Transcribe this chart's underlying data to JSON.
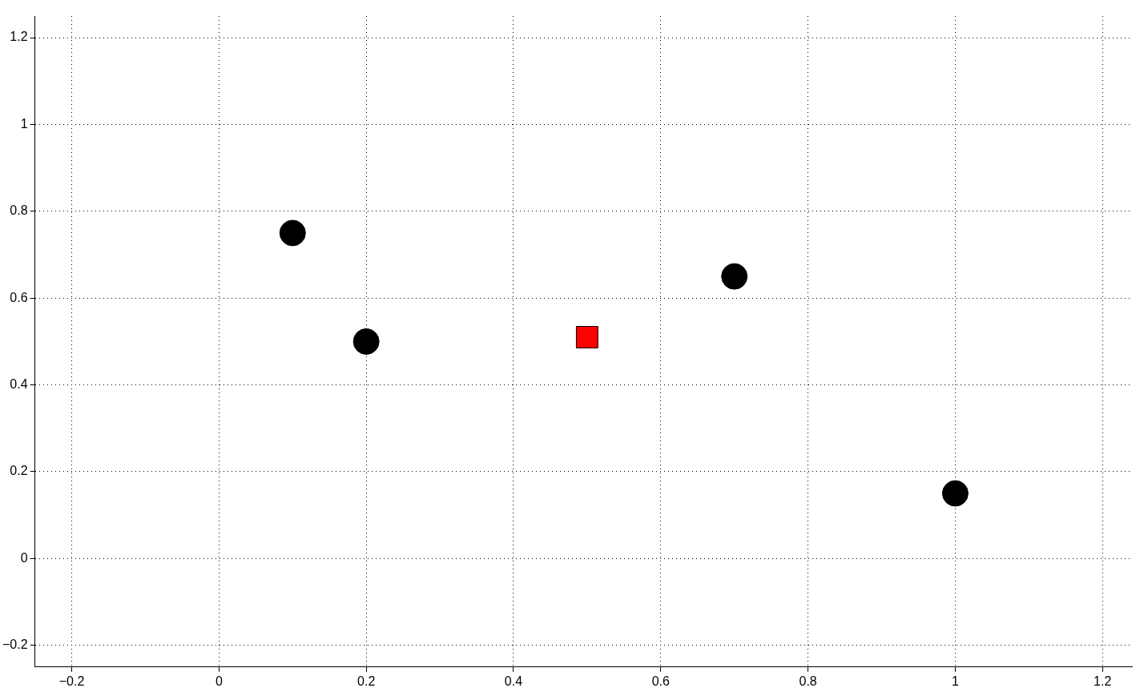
{
  "chart_data": {
    "type": "scatter",
    "grid": true,
    "line_style": "dotted",
    "legend": false,
    "xlim": [
      -0.25,
      1.24
    ],
    "ylim": [
      -0.25,
      1.25
    ],
    "xticks": [
      {
        "value": -0.2,
        "label": "−0.2"
      },
      0,
      0.2,
      0.4,
      0.6,
      0.8,
      1,
      1.2
    ],
    "yticks": [
      {
        "value": -0.2,
        "label": "−0.2"
      },
      0,
      0.2,
      0.4,
      0.6,
      0.8,
      1,
      1.2
    ],
    "series": [
      {
        "color": "#000000",
        "marker": "circle",
        "x": [
          0.1,
          0.2,
          0.7,
          1.0
        ],
        "values": [
          0.75,
          0.5,
          0.65,
          0.15
        ]
      },
      {
        "color": "#ff0000",
        "marker": "square",
        "x": [
          0.5
        ],
        "values": [
          0.51
        ]
      }
    ]
  }
}
